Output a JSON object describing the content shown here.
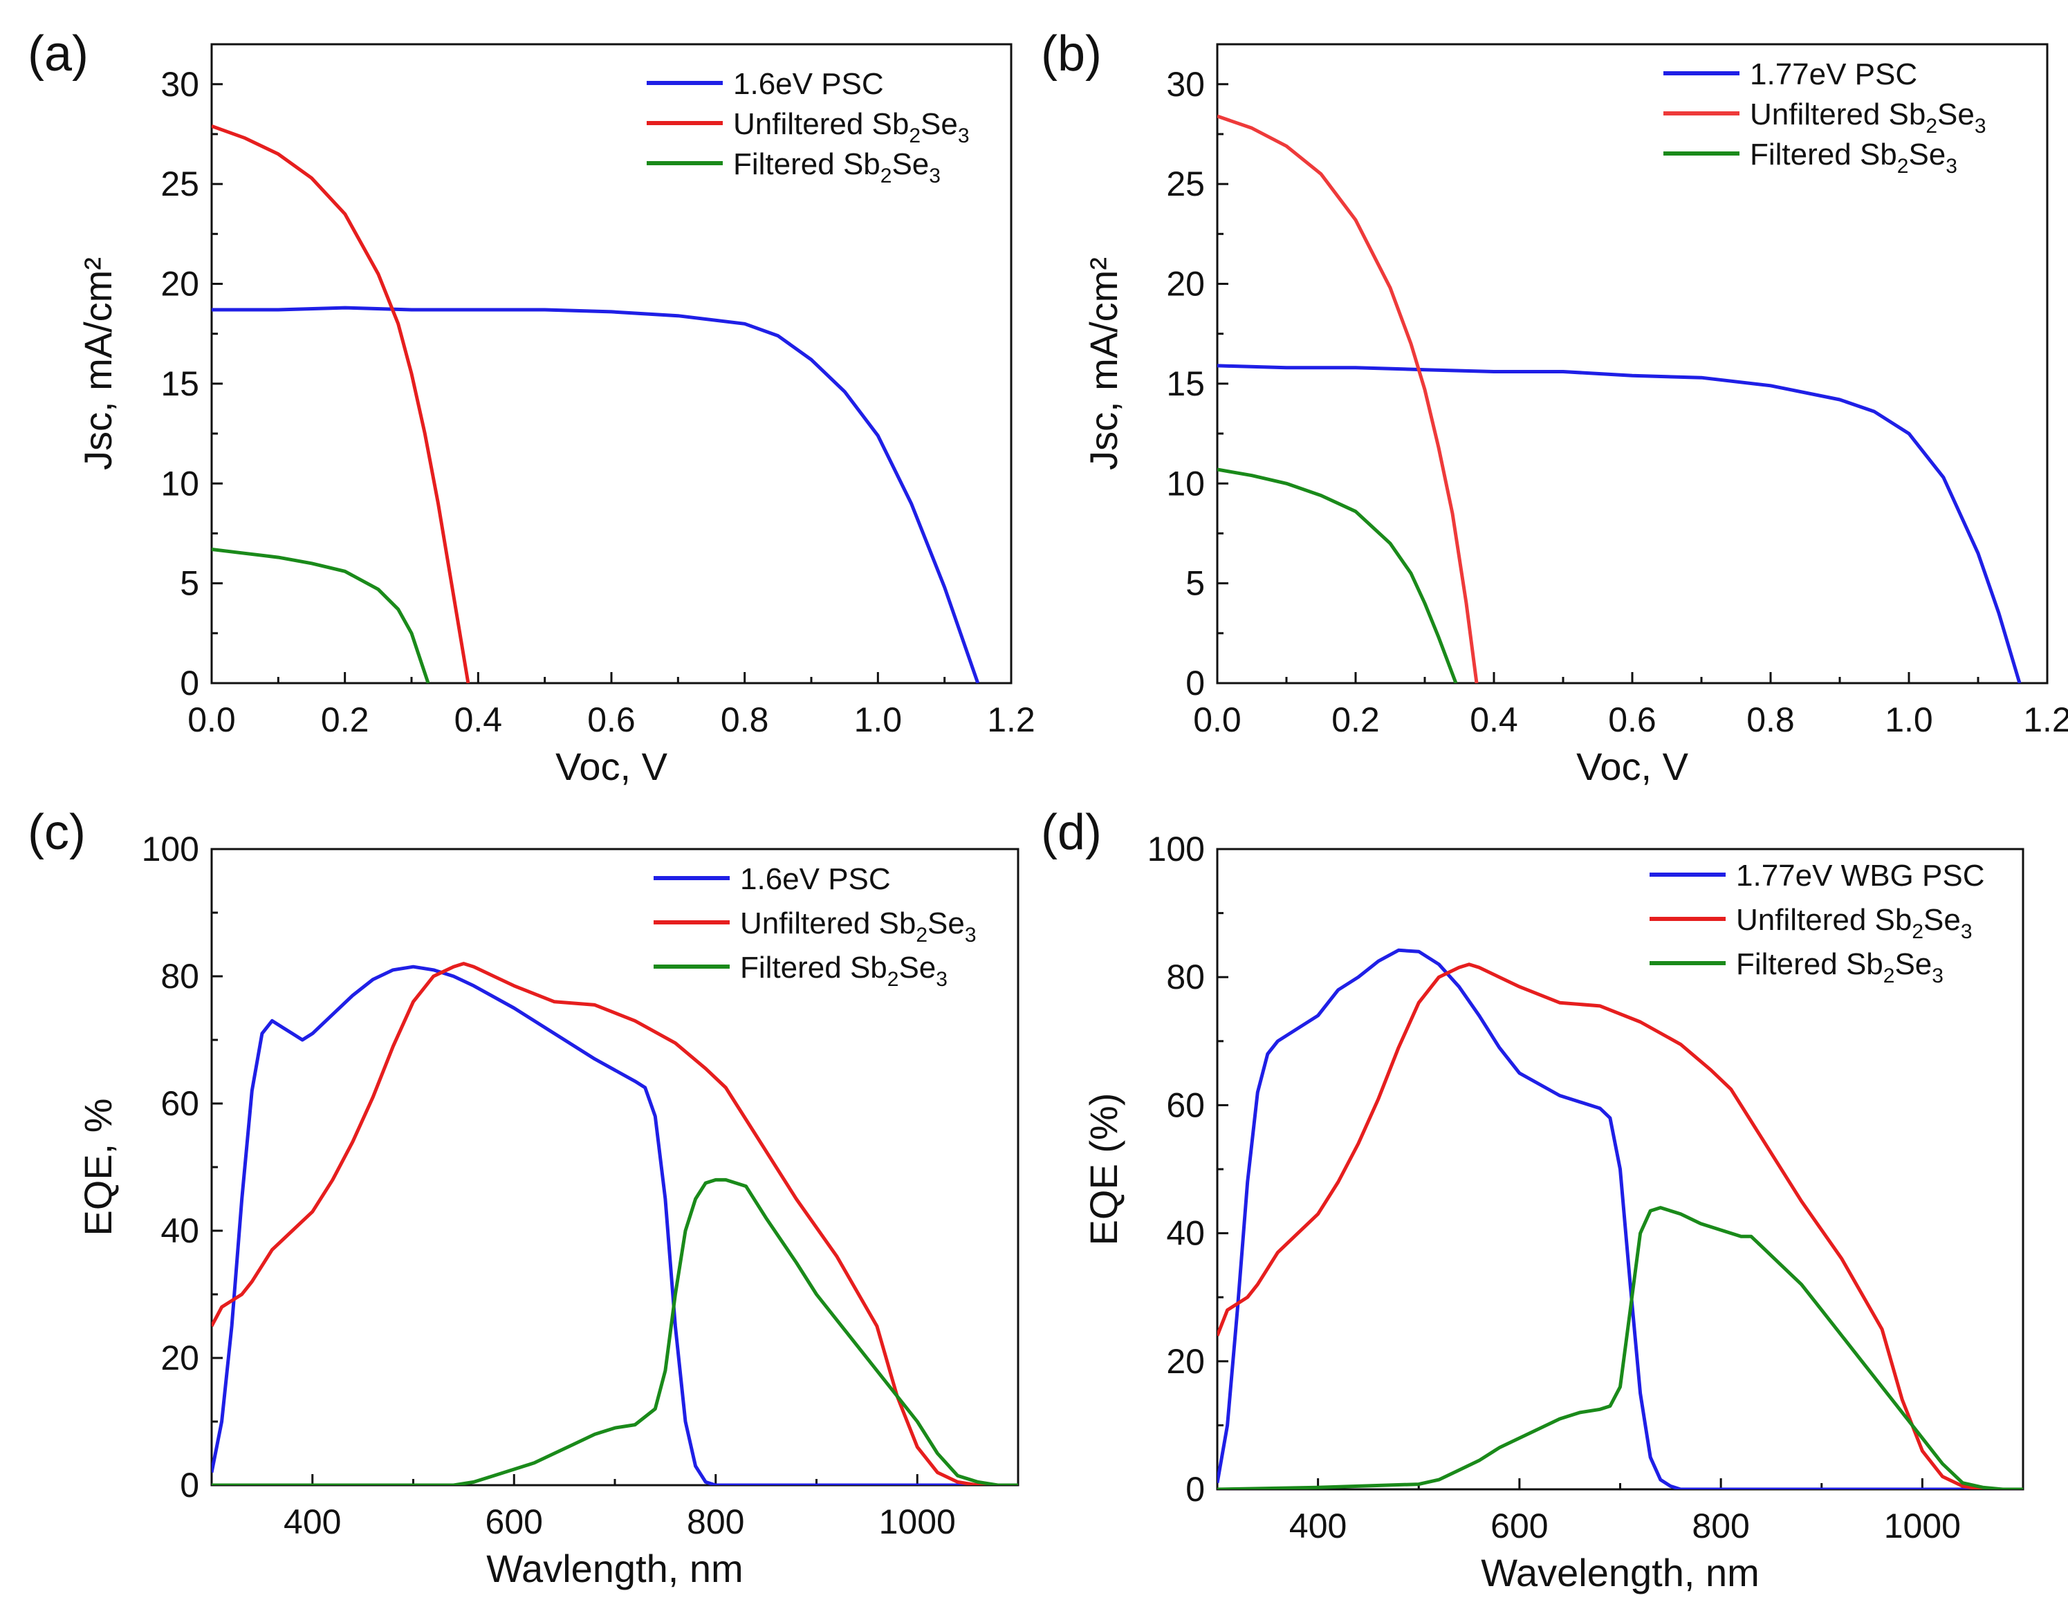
{
  "figure": {
    "description_labels": [
      "(a)",
      "(b)",
      "(c)",
      "(d)"
    ]
  },
  "chart_data": [
    {
      "id": "a",
      "panel_label": "(a)",
      "type": "line",
      "xlabel": "Voc, V",
      "ylabel": "Jsc, mA/cm²",
      "xlim": [
        0.0,
        1.2
      ],
      "ylim": [
        0,
        32
      ],
      "xticks": [
        0.0,
        0.2,
        0.4,
        0.6,
        0.8,
        1.0,
        1.2
      ],
      "xtick_labels": [
        "0.0",
        "0.2",
        "0.4",
        "0.6",
        "0.8",
        "1.0",
        "1.2"
      ],
      "yticks": [
        0,
        5,
        10,
        15,
        20,
        25,
        30
      ],
      "ytick_labels": [
        "0",
        "5",
        "10",
        "15",
        "20",
        "25",
        "30"
      ],
      "legend_position": "top-right",
      "series": [
        {
          "name": "1.6eV PSC",
          "label_main": "1.6eV PSC",
          "color": "#1f1fe6",
          "x": [
            0,
            0.1,
            0.2,
            0.3,
            0.4,
            0.5,
            0.6,
            0.7,
            0.8,
            0.85,
            0.9,
            0.95,
            1.0,
            1.05,
            1.1,
            1.15
          ],
          "y": [
            18.7,
            18.7,
            18.8,
            18.7,
            18.7,
            18.7,
            18.6,
            18.4,
            18.0,
            17.4,
            16.2,
            14.6,
            12.4,
            9.0,
            4.8,
            0
          ]
        },
        {
          "name": "Unfiltered Sb2Se3",
          "label_main": "Unfiltered Sb",
          "label_sub1": "2",
          "label_mid": "Se",
          "label_sub2": "3",
          "color": "#e61e1e",
          "x": [
            0,
            0.05,
            0.1,
            0.15,
            0.2,
            0.25,
            0.28,
            0.3,
            0.32,
            0.34,
            0.36,
            0.38,
            0.385
          ],
          "y": [
            27.9,
            27.3,
            26.5,
            25.3,
            23.5,
            20.5,
            18.0,
            15.5,
            12.5,
            9.0,
            5.0,
            1.0,
            0
          ]
        },
        {
          "name": "Filtered Sb2Se3",
          "label_main": "Filtered Sb",
          "label_sub1": "2",
          "label_mid": "Se",
          "label_sub2": "3",
          "color": "#1a8a1a",
          "x": [
            0,
            0.05,
            0.1,
            0.15,
            0.2,
            0.25,
            0.28,
            0.3,
            0.31,
            0.325
          ],
          "y": [
            6.7,
            6.5,
            6.3,
            6.0,
            5.6,
            4.7,
            3.7,
            2.5,
            1.5,
            0
          ]
        }
      ]
    },
    {
      "id": "b",
      "panel_label": "(b)",
      "type": "line",
      "xlabel": "Voc, V",
      "ylabel": "Jsc, mA/cm²",
      "xlim": [
        0.0,
        1.2
      ],
      "ylim": [
        0,
        32
      ],
      "xticks": [
        0.0,
        0.2,
        0.4,
        0.6,
        0.8,
        1.0,
        1.2
      ],
      "xtick_labels": [
        "0.0",
        "0.2",
        "0.4",
        "0.6",
        "0.8",
        "1.0",
        "1.2"
      ],
      "yticks": [
        0,
        5,
        10,
        15,
        20,
        25,
        30
      ],
      "ytick_labels": [
        "0",
        "5",
        "10",
        "15",
        "20",
        "25",
        "30"
      ],
      "legend_position": "top-right",
      "series": [
        {
          "name": "1.77eV PSC",
          "label_main": "1.77eV PSC",
          "color": "#1f1fe6",
          "x": [
            0,
            0.1,
            0.2,
            0.3,
            0.4,
            0.5,
            0.6,
            0.7,
            0.8,
            0.9,
            0.95,
            1.0,
            1.05,
            1.1,
            1.13,
            1.16
          ],
          "y": [
            15.9,
            15.8,
            15.8,
            15.7,
            15.6,
            15.6,
            15.4,
            15.3,
            14.9,
            14.2,
            13.6,
            12.5,
            10.3,
            6.5,
            3.5,
            0
          ]
        },
        {
          "name": "Unfiltered Sb2Se3",
          "label_main": "Unfiltered Sb",
          "label_sub1": "2",
          "label_mid": "Se",
          "label_sub2": "3",
          "color": "#ee3a3a",
          "x": [
            0,
            0.05,
            0.1,
            0.15,
            0.2,
            0.25,
            0.28,
            0.3,
            0.32,
            0.34,
            0.36,
            0.375
          ],
          "y": [
            28.4,
            27.8,
            26.9,
            25.5,
            23.2,
            19.8,
            17.0,
            14.7,
            11.8,
            8.5,
            4.0,
            0
          ]
        },
        {
          "name": "Filtered Sb2Se3",
          "label_main": "Filtered Sb",
          "label_sub1": "2",
          "label_mid": "Se",
          "label_sub2": "3",
          "color": "#1a8a1a",
          "x": [
            0,
            0.05,
            0.1,
            0.15,
            0.2,
            0.25,
            0.28,
            0.3,
            0.32,
            0.345
          ],
          "y": [
            10.7,
            10.4,
            10.0,
            9.4,
            8.6,
            7.0,
            5.5,
            4.0,
            2.3,
            0
          ]
        }
      ]
    },
    {
      "id": "c",
      "panel_label": "(c)",
      "type": "line",
      "xlabel": "Wavlength, nm",
      "ylabel": "EQE, %",
      "xlim": [
        300,
        1100
      ],
      "ylim": [
        0,
        100
      ],
      "xticks": [
        400,
        600,
        800,
        1000
      ],
      "xtick_labels": [
        "400",
        "600",
        "800",
        "1000"
      ],
      "yticks": [
        0,
        20,
        40,
        60,
        80,
        100
      ],
      "ytick_labels": [
        "0",
        "20",
        "40",
        "60",
        "80",
        "100"
      ],
      "legend_position": "top-right",
      "series": [
        {
          "name": "1.6eV PSC",
          "label_main": "1.6eV PSC",
          "color": "#1f1fe6",
          "x": [
            300,
            310,
            320,
            330,
            340,
            350,
            360,
            370,
            380,
            390,
            400,
            420,
            440,
            460,
            480,
            500,
            520,
            540,
            560,
            600,
            640,
            680,
            720,
            730,
            740,
            750,
            760,
            770,
            780,
            790,
            800,
            850,
            1100
          ],
          "y": [
            2,
            10,
            25,
            45,
            62,
            71,
            73,
            72,
            71,
            70,
            71,
            74,
            77,
            79.5,
            81,
            81.5,
            81,
            80,
            78.5,
            75,
            71,
            67,
            63.5,
            62.5,
            58,
            45,
            25,
            10,
            3,
            0.5,
            0,
            0,
            0
          ]
        },
        {
          "name": "Unfiltered Sb2Se3",
          "label_main": "Unfiltered Sb",
          "label_sub1": "2",
          "label_mid": "Se",
          "label_sub2": "3",
          "color": "#e61e1e",
          "x": [
            300,
            310,
            320,
            330,
            340,
            360,
            380,
            400,
            420,
            440,
            460,
            480,
            500,
            520,
            540,
            550,
            560,
            580,
            600,
            640,
            680,
            720,
            760,
            790,
            810,
            840,
            880,
            920,
            960,
            980,
            1000,
            1020,
            1040,
            1060,
            1080,
            1100
          ],
          "y": [
            25,
            28,
            29,
            30,
            32,
            37,
            40,
            43,
            48,
            54,
            61,
            69,
            76,
            80,
            81.5,
            82,
            81.5,
            80,
            78.5,
            76,
            75.5,
            73,
            69.5,
            65.5,
            62.5,
            55,
            45,
            36,
            25,
            14,
            6,
            2,
            0.5,
            0,
            0,
            0
          ]
        },
        {
          "name": "Filtered Sb2Se3",
          "label_main": "Filtered Sb",
          "label_sub1": "2",
          "label_mid": "Se",
          "label_sub2": "3",
          "color": "#1a8a1a",
          "x": [
            300,
            500,
            540,
            560,
            580,
            600,
            620,
            640,
            660,
            680,
            700,
            720,
            740,
            750,
            760,
            770,
            780,
            790,
            800,
            810,
            820,
            830,
            850,
            880,
            900,
            940,
            980,
            1000,
            1020,
            1040,
            1060,
            1080,
            1100
          ],
          "y": [
            0,
            0,
            0,
            0.5,
            1.5,
            2.5,
            3.5,
            5,
            6.5,
            8,
            9,
            9.5,
            12,
            18,
            30,
            40,
            45,
            47.5,
            48,
            48,
            47.5,
            47,
            42,
            35,
            30,
            22,
            14,
            10,
            5,
            1.5,
            0.5,
            0,
            0
          ]
        }
      ]
    },
    {
      "id": "d",
      "panel_label": "(d)",
      "type": "line",
      "xlabel": "Wavelength, nm",
      "ylabel": "EQE (%)",
      "xlim": [
        300,
        1100
      ],
      "ylim": [
        0,
        100
      ],
      "xticks": [
        400,
        600,
        800,
        1000
      ],
      "xtick_labels": [
        "400",
        "600",
        "800",
        "1000"
      ],
      "yticks": [
        0,
        20,
        40,
        60,
        80,
        100
      ],
      "ytick_labels": [
        "0",
        "20",
        "40",
        "60",
        "80",
        "100"
      ],
      "legend_position": "top-right",
      "series": [
        {
          "name": "1.77eV WBG PSC",
          "label_main": "1.77eV WBG PSC",
          "color": "#1f1fe6",
          "x": [
            300,
            310,
            320,
            330,
            340,
            350,
            360,
            380,
            400,
            420,
            440,
            460,
            480,
            500,
            520,
            540,
            560,
            580,
            600,
            640,
            680,
            690,
            700,
            710,
            720,
            730,
            740,
            750,
            760,
            780,
            1100
          ],
          "y": [
            1,
            10,
            28,
            48,
            62,
            68,
            70,
            72,
            74,
            78,
            80,
            82.5,
            84.2,
            84,
            82,
            78.5,
            74,
            69,
            65,
            61.5,
            59.5,
            58,
            50,
            32,
            15,
            5,
            1.5,
            0.5,
            0,
            0,
            0
          ]
        },
        {
          "name": "Unfiltered Sb2Se3",
          "label_main": "Unfiltered Sb",
          "label_sub1": "2",
          "label_mid": "Se",
          "label_sub2": "3",
          "color": "#e61e1e",
          "x": [
            300,
            310,
            320,
            330,
            340,
            360,
            380,
            400,
            420,
            440,
            460,
            480,
            500,
            520,
            540,
            550,
            560,
            580,
            600,
            640,
            680,
            720,
            760,
            790,
            810,
            840,
            880,
            920,
            960,
            980,
            1000,
            1020,
            1040,
            1060,
            1080,
            1100
          ],
          "y": [
            24,
            28,
            29,
            30,
            32,
            37,
            40,
            43,
            48,
            54,
            61,
            69,
            76,
            80,
            81.5,
            82,
            81.5,
            80,
            78.5,
            76,
            75.5,
            73,
            69.5,
            65.5,
            62.5,
            55,
            45,
            36,
            25,
            14,
            6,
            2,
            0.5,
            0,
            0,
            0
          ]
        },
        {
          "name": "Filtered Sb2Se3",
          "label_main": "Filtered Sb",
          "label_sub1": "2",
          "label_mid": "Se",
          "label_sub2": "3",
          "color": "#1a8a1a",
          "x": [
            300,
            400,
            500,
            520,
            540,
            560,
            580,
            600,
            620,
            640,
            660,
            680,
            690,
            700,
            710,
            720,
            730,
            740,
            760,
            780,
            800,
            820,
            830,
            840,
            860,
            880,
            900,
            940,
            980,
            1000,
            1020,
            1040,
            1060,
            1080,
            1100
          ],
          "y": [
            0,
            0.3,
            0.8,
            1.5,
            3,
            4.5,
            6.5,
            8,
            9.5,
            11,
            12,
            12.5,
            13,
            16,
            28,
            40,
            43.5,
            44,
            43,
            41.5,
            40.5,
            39.5,
            39.5,
            38,
            35,
            32,
            28,
            20,
            12,
            8,
            4,
            1,
            0.3,
            0,
            0
          ]
        }
      ]
    }
  ]
}
